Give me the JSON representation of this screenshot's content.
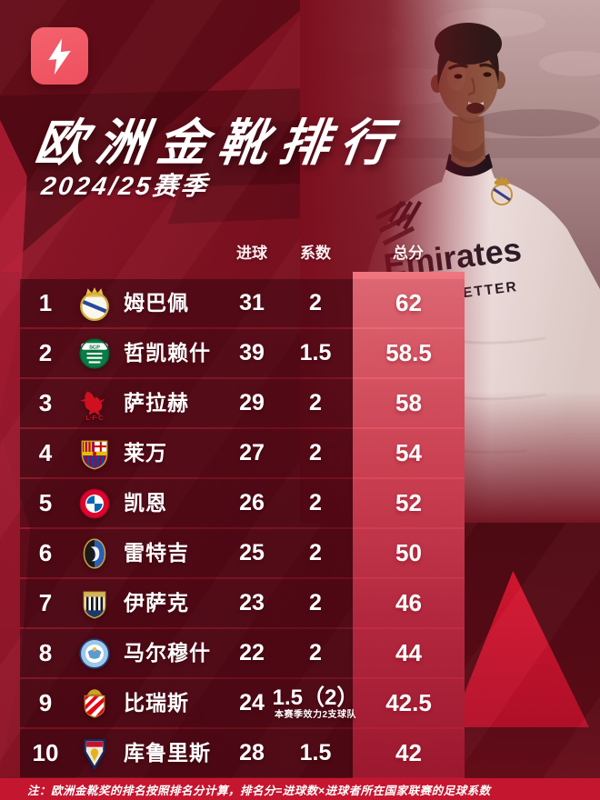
{
  "chart_data": {
    "type": "table",
    "title": "欧洲金靴排行",
    "subtitle": "2024/25赛季",
    "columns": [
      "进球",
      "系数",
      "总分"
    ],
    "rows": [
      {
        "rank": "1",
        "club_icon": "real-madrid-crest-icon",
        "player": "姆巴佩",
        "goals": "31",
        "coefficient": "2",
        "total": "62"
      },
      {
        "rank": "2",
        "club_icon": "sporting-cp-crest-icon",
        "player": "哲凯赖什",
        "goals": "39",
        "coefficient": "1.5",
        "total": "58.5"
      },
      {
        "rank": "3",
        "club_icon": "liverpool-crest-icon",
        "player": "萨拉赫",
        "goals": "29",
        "coefficient": "2",
        "total": "58"
      },
      {
        "rank": "4",
        "club_icon": "barcelona-crest-icon",
        "player": "莱万",
        "goals": "27",
        "coefficient": "2",
        "total": "54"
      },
      {
        "rank": "5",
        "club_icon": "bayern-munich-crest-icon",
        "player": "凯恩",
        "goals": "26",
        "coefficient": "2",
        "total": "52"
      },
      {
        "rank": "6",
        "club_icon": "atalanta-crest-icon",
        "player": "雷特吉",
        "goals": "25",
        "coefficient": "2",
        "total": "50"
      },
      {
        "rank": "7",
        "club_icon": "newcastle-crest-icon",
        "player": "伊萨克",
        "goals": "23",
        "coefficient": "2",
        "total": "46"
      },
      {
        "rank": "8",
        "club_icon": "man-city-crest-icon",
        "player": "马尔穆什",
        "goals": "22",
        "coefficient": "2",
        "total": "44"
      },
      {
        "rank": "9",
        "club_icon": "monaco-crest-icon",
        "player": "比瑞斯",
        "goals": "24",
        "coefficient": "1.5（2）",
        "coefficient_note": "本赛季效力2支球队",
        "total": "42.5"
      },
      {
        "rank": "10",
        "club_icon": "pogon-szczecin-crest-icon",
        "player": "库鲁里斯",
        "goals": "28",
        "coefficient": "1.5",
        "total": "42"
      }
    ]
  },
  "photo": {
    "jersey_sponsor_line1": "Emirates",
    "jersey_sponsor_line2": "FLY BETTER"
  },
  "footer": {
    "note": "注：欧洲金靴奖的排名按照排名分计算，排名分=进球数×进球者所在国家联赛的足球系数"
  },
  "colors": {
    "background": "#7a0f1f",
    "accent_strip_top": "#f17681",
    "accent_strip_bottom": "#a81b33",
    "footer_bar": "#c4162f",
    "brand_badge": "#f1525f",
    "text": "#ffffff"
  }
}
